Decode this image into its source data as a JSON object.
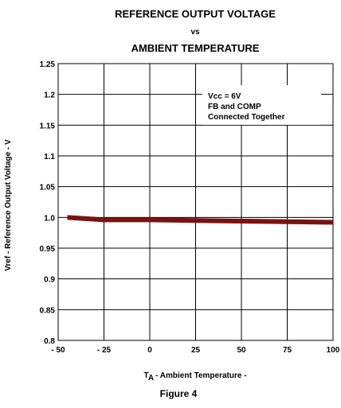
{
  "chart_data": {
    "type": "line",
    "title_line1": "REFERENCE OUTPUT VOLTAGE",
    "title_line2": "vs",
    "title_line3": "AMBIENT TEMPERATURE",
    "xlabel_sub_main": "T",
    "xlabel_sub_script": "A",
    "xlabel_rest": "- Ambient Temperature -",
    "ylabel": "Vref - Reference Output Voltage - V",
    "figure_caption": "Figure 4",
    "annotation": [
      "Vcc = 6V",
      "FB and COMP",
      "Connected Together"
    ],
    "xlim": [
      -50,
      100
    ],
    "ylim": [
      0.8,
      1.25
    ],
    "x_ticks": [
      -50,
      -25,
      0,
      25,
      50,
      75,
      100
    ],
    "x_tick_labels": [
      "- 50",
      "- 25",
      "0",
      "25",
      "50",
      "75",
      "100"
    ],
    "y_ticks": [
      0.8,
      0.85,
      0.9,
      0.95,
      1.0,
      1.05,
      1.1,
      1.15,
      1.2,
      1.25
    ],
    "y_tick_labels": [
      "0.8",
      "0.85",
      "0.9",
      "0.95",
      "1.0",
      "1.05",
      "1.1",
      "1.15",
      "1.2",
      "1.25"
    ],
    "grid": true,
    "series": [
      {
        "color": "#7a1212",
        "x": [
          -45,
          -25,
          0,
          25,
          50,
          75,
          100
        ],
        "y": [
          1.0,
          0.996,
          0.996,
          0.995,
          0.994,
          0.993,
          0.992
        ]
      }
    ]
  }
}
